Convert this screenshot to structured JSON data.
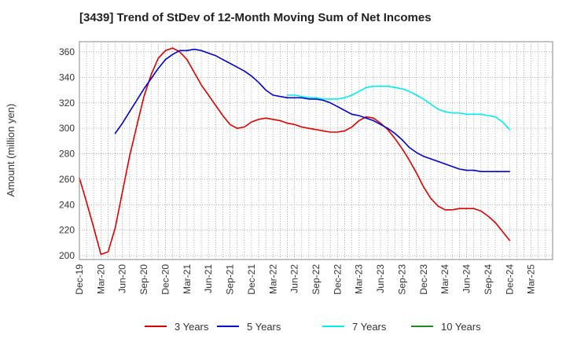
{
  "chart_data": {
    "type": "line",
    "title": "[3439]  Trend of StDev of 12-Month Moving Sum of Net Incomes",
    "xlabel": "",
    "ylabel": "Amount (million yen)",
    "ylim": [
      197,
      368
    ],
    "yticks": [
      200,
      220,
      240,
      260,
      280,
      300,
      320,
      340,
      360
    ],
    "xlim": [
      0,
      66
    ],
    "xticks": [
      {
        "x": 0,
        "label": "Dec-19"
      },
      {
        "x": 3,
        "label": "Mar-20"
      },
      {
        "x": 6,
        "label": "Jun-20"
      },
      {
        "x": 9,
        "label": "Sep-20"
      },
      {
        "x": 12,
        "label": "Dec-20"
      },
      {
        "x": 15,
        "label": "Mar-21"
      },
      {
        "x": 18,
        "label": "Jun-21"
      },
      {
        "x": 21,
        "label": "Sep-21"
      },
      {
        "x": 24,
        "label": "Dec-21"
      },
      {
        "x": 27,
        "label": "Mar-22"
      },
      {
        "x": 30,
        "label": "Jun-22"
      },
      {
        "x": 33,
        "label": "Sep-22"
      },
      {
        "x": 36,
        "label": "Dec-22"
      },
      {
        "x": 39,
        "label": "Mar-23"
      },
      {
        "x": 42,
        "label": "Jun-23"
      },
      {
        "x": 45,
        "label": "Sep-23"
      },
      {
        "x": 48,
        "label": "Dec-23"
      },
      {
        "x": 51,
        "label": "Mar-24"
      },
      {
        "x": 54,
        "label": "Jun-24"
      },
      {
        "x": 57,
        "label": "Sep-24"
      },
      {
        "x": 60,
        "label": "Dec-24"
      },
      {
        "x": 63,
        "label": "Mar-25"
      }
    ],
    "grid": true,
    "legend_position": "bottom",
    "series": [
      {
        "name": "3 Years",
        "color": "#dd0000",
        "points": [
          [
            0,
            261
          ],
          [
            1,
            242
          ],
          [
            2,
            222
          ],
          [
            3,
            201
          ],
          [
            4,
            203
          ],
          [
            5,
            222
          ],
          [
            6,
            250
          ],
          [
            7,
            278
          ],
          [
            8,
            302
          ],
          [
            9,
            325
          ],
          [
            10,
            342
          ],
          [
            11,
            355
          ],
          [
            12,
            361
          ],
          [
            13,
            363
          ],
          [
            14,
            360
          ],
          [
            15,
            354
          ],
          [
            16,
            344
          ],
          [
            17,
            334
          ],
          [
            18,
            326
          ],
          [
            19,
            318
          ],
          [
            20,
            310
          ],
          [
            21,
            303
          ],
          [
            22,
            300
          ],
          [
            23,
            301
          ],
          [
            24,
            305
          ],
          [
            25,
            307
          ],
          [
            26,
            308
          ],
          [
            27,
            307
          ],
          [
            28,
            306
          ],
          [
            29,
            304
          ],
          [
            30,
            303
          ],
          [
            31,
            301
          ],
          [
            32,
            300
          ],
          [
            33,
            299
          ],
          [
            34,
            298
          ],
          [
            35,
            297
          ],
          [
            36,
            297
          ],
          [
            37,
            298
          ],
          [
            38,
            301
          ],
          [
            39,
            306
          ],
          [
            40,
            309
          ],
          [
            41,
            308
          ],
          [
            42,
            304
          ],
          [
            43,
            299
          ],
          [
            44,
            292
          ],
          [
            45,
            284
          ],
          [
            46,
            275
          ],
          [
            47,
            265
          ],
          [
            48,
            254
          ],
          [
            49,
            245
          ],
          [
            50,
            239
          ],
          [
            51,
            236
          ],
          [
            52,
            236
          ],
          [
            53,
            237
          ],
          [
            54,
            237
          ],
          [
            55,
            237
          ],
          [
            56,
            235
          ],
          [
            57,
            231
          ],
          [
            58,
            226
          ],
          [
            59,
            219
          ],
          [
            60,
            212
          ]
        ]
      },
      {
        "name": "5 Years",
        "color": "#0000cc",
        "points": [
          [
            5,
            296
          ],
          [
            6,
            304
          ],
          [
            7,
            313
          ],
          [
            8,
            322
          ],
          [
            9,
            331
          ],
          [
            10,
            339
          ],
          [
            11,
            347
          ],
          [
            12,
            354
          ],
          [
            13,
            358
          ],
          [
            14,
            361
          ],
          [
            15,
            361
          ],
          [
            16,
            362
          ],
          [
            17,
            361
          ],
          [
            18,
            359
          ],
          [
            19,
            357
          ],
          [
            20,
            354
          ],
          [
            21,
            351
          ],
          [
            22,
            348
          ],
          [
            23,
            345
          ],
          [
            24,
            341
          ],
          [
            25,
            336
          ],
          [
            26,
            330
          ],
          [
            27,
            326
          ],
          [
            28,
            325
          ],
          [
            29,
            324
          ],
          [
            30,
            324
          ],
          [
            31,
            324
          ],
          [
            32,
            323
          ],
          [
            33,
            323
          ],
          [
            34,
            322
          ],
          [
            35,
            320
          ],
          [
            36,
            317
          ],
          [
            37,
            314
          ],
          [
            38,
            311
          ],
          [
            39,
            310
          ],
          [
            40,
            308
          ],
          [
            41,
            306
          ],
          [
            42,
            303
          ],
          [
            43,
            300
          ],
          [
            44,
            296
          ],
          [
            45,
            291
          ],
          [
            46,
            285
          ],
          [
            47,
            281
          ],
          [
            48,
            278
          ],
          [
            49,
            276
          ],
          [
            50,
            274
          ],
          [
            51,
            272
          ],
          [
            52,
            270
          ],
          [
            53,
            268
          ],
          [
            54,
            267
          ],
          [
            55,
            267
          ],
          [
            56,
            266
          ],
          [
            57,
            266
          ],
          [
            58,
            266
          ],
          [
            59,
            266
          ],
          [
            60,
            266
          ]
        ]
      },
      {
        "name": "7 Years",
        "color": "#00eeee",
        "points": [
          [
            29,
            326
          ],
          [
            30,
            326
          ],
          [
            31,
            325
          ],
          [
            32,
            324
          ],
          [
            33,
            324
          ],
          [
            34,
            323
          ],
          [
            35,
            323
          ],
          [
            36,
            323
          ],
          [
            37,
            324
          ],
          [
            38,
            326
          ],
          [
            39,
            329
          ],
          [
            40,
            332
          ],
          [
            41,
            333
          ],
          [
            42,
            333
          ],
          [
            43,
            333
          ],
          [
            44,
            332
          ],
          [
            45,
            331
          ],
          [
            46,
            329
          ],
          [
            47,
            326
          ],
          [
            48,
            323
          ],
          [
            49,
            319
          ],
          [
            50,
            315
          ],
          [
            51,
            313
          ],
          [
            52,
            312
          ],
          [
            53,
            312
          ],
          [
            54,
            311
          ],
          [
            55,
            311
          ],
          [
            56,
            311
          ],
          [
            57,
            310
          ],
          [
            58,
            309
          ],
          [
            59,
            305
          ],
          [
            60,
            299
          ]
        ]
      },
      {
        "name": "10 Years",
        "color": "#228822",
        "points": []
      }
    ]
  }
}
